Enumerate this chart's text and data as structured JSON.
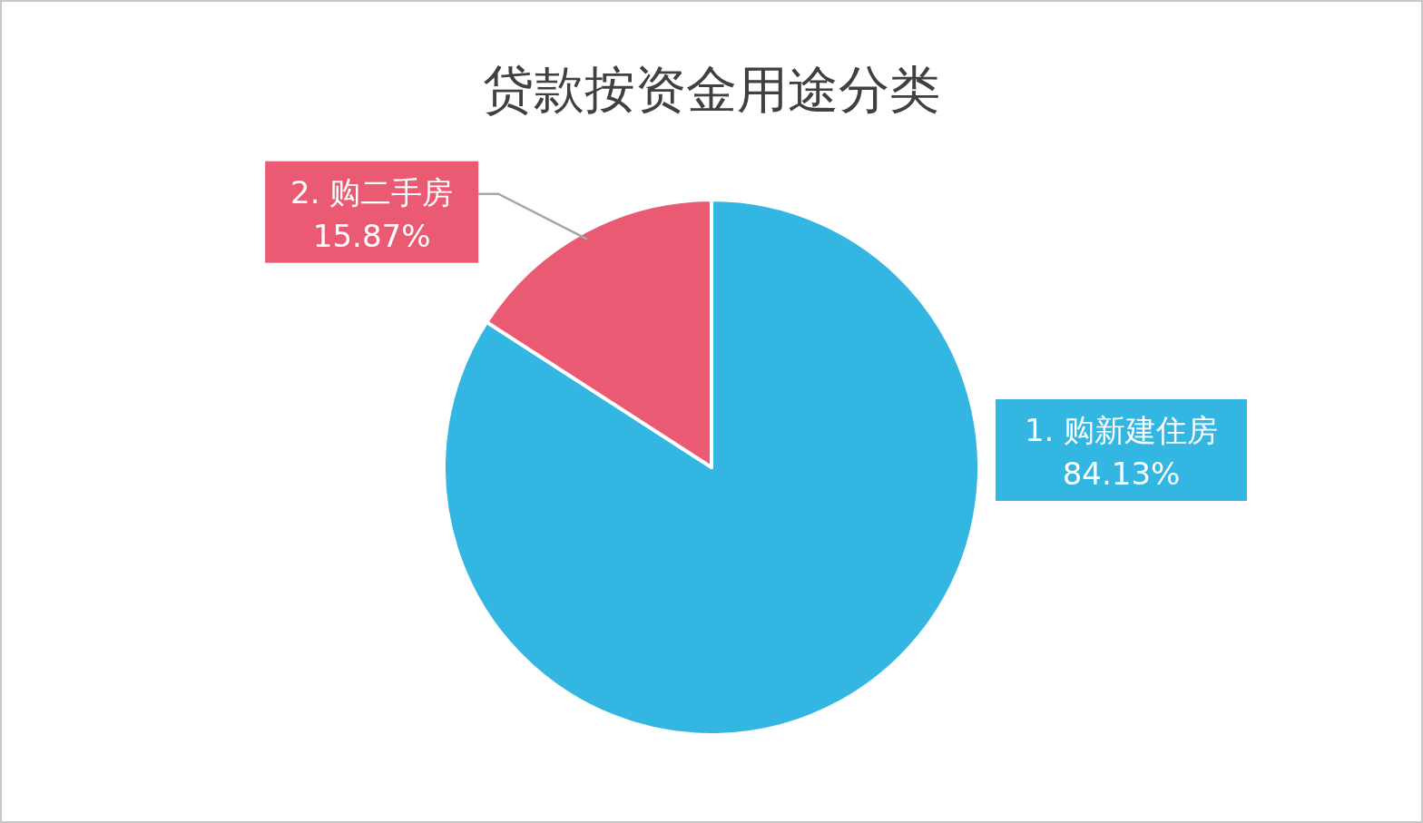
{
  "chart_data": {
    "type": "pie",
    "title": "贷款按资金用途分类",
    "categories": [
      "1. 购新建住房",
      "2. 购二手房"
    ],
    "values": [
      84.13,
      15.87
    ],
    "colors": [
      "#34b6e2",
      "#ea5b73"
    ],
    "value_labels": [
      "84.13%",
      "15.87%"
    ]
  }
}
